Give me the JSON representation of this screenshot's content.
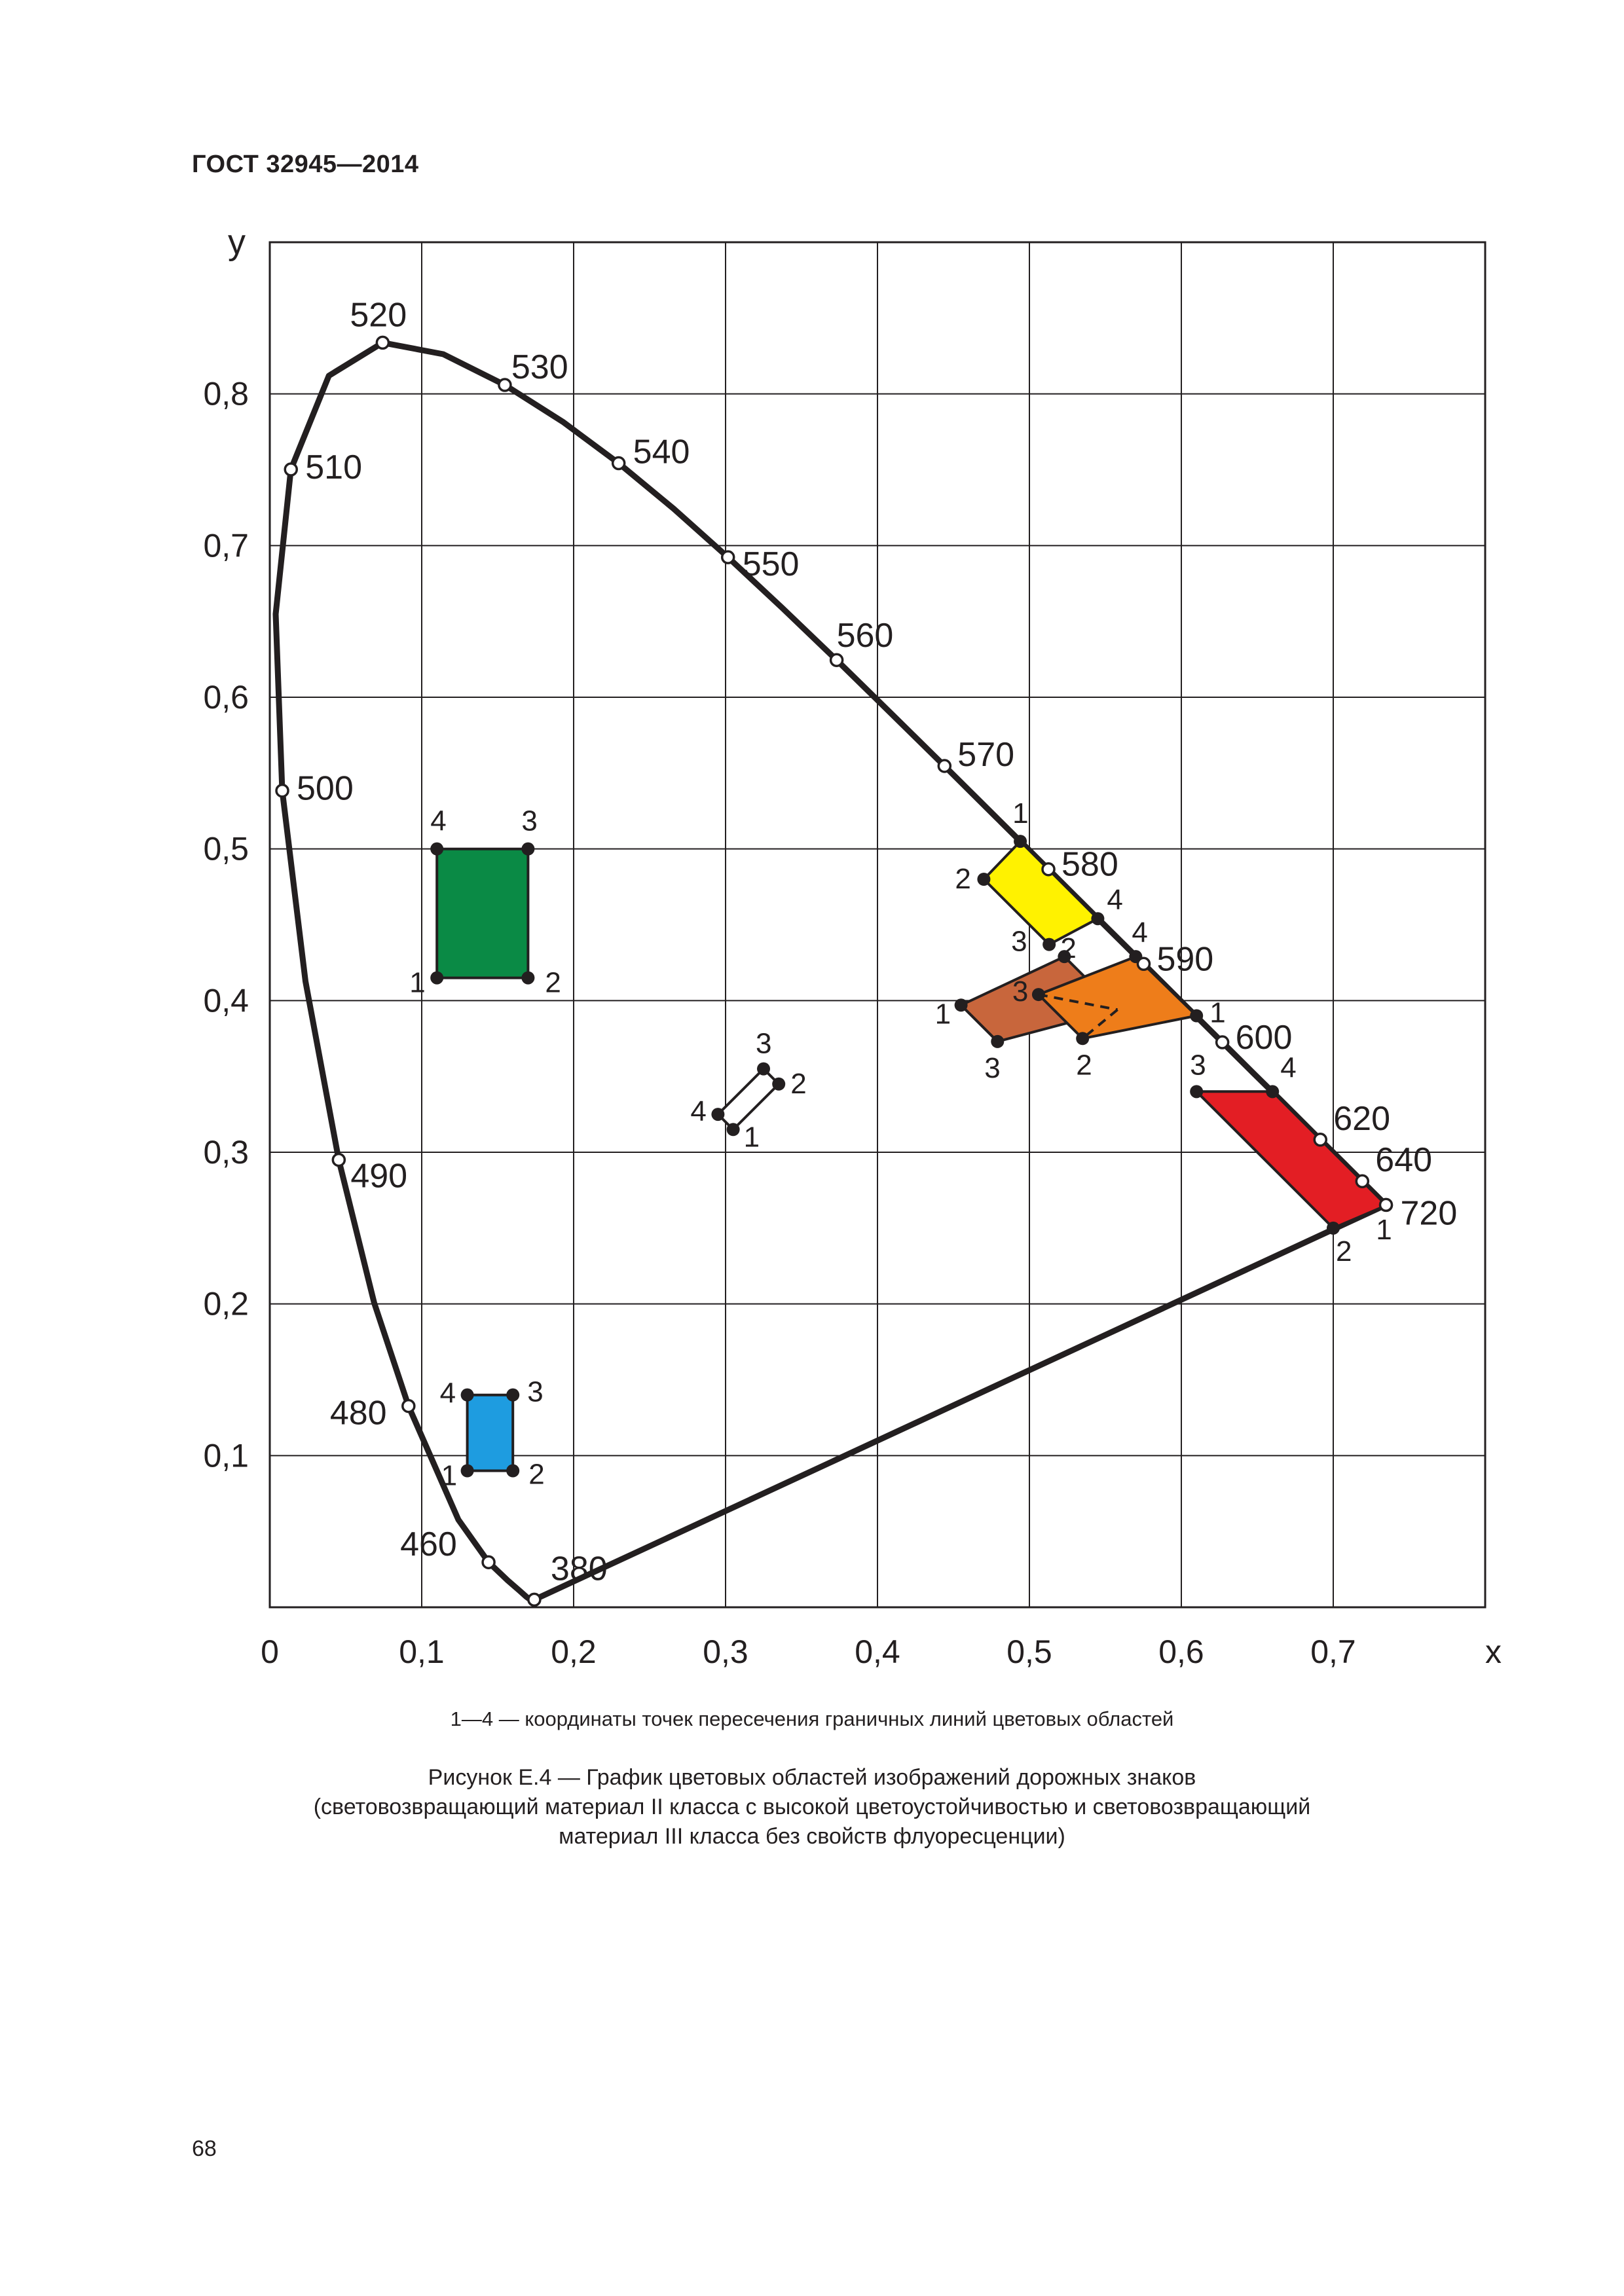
{
  "header": {
    "standard": "ГОСТ 32945—2014"
  },
  "chart_data": {
    "type": "scatter",
    "xlabel": "x",
    "ylabel": "y",
    "xlim": [
      0,
      0.8
    ],
    "ylim": [
      0,
      0.9
    ],
    "x_ticks": [
      {
        "value": 0,
        "label": "0"
      },
      {
        "value": 0.1,
        "label": "0,1"
      },
      {
        "value": 0.2,
        "label": "0,2"
      },
      {
        "value": 0.3,
        "label": "0,3"
      },
      {
        "value": 0.4,
        "label": "0,4"
      },
      {
        "value": 0.5,
        "label": "0,5"
      },
      {
        "value": 0.6,
        "label": "0,6"
      },
      {
        "value": 0.7,
        "label": "0,7"
      }
    ],
    "y_ticks": [
      {
        "value": 0.1,
        "label": "0,1"
      },
      {
        "value": 0.2,
        "label": "0,2"
      },
      {
        "value": 0.3,
        "label": "0,3"
      },
      {
        "value": 0.4,
        "label": "0,4"
      },
      {
        "value": 0.5,
        "label": "0,5"
      },
      {
        "value": 0.6,
        "label": "0,6"
      },
      {
        "value": 0.7,
        "label": "0,7"
      },
      {
        "value": 0.8,
        "label": "0,8"
      }
    ],
    "grid": true,
    "spectral_locus": [
      [
        0.1741,
        0.005
      ],
      [
        0.1738,
        0.0049
      ],
      [
        0.1736,
        0.005
      ],
      [
        0.1714,
        0.0051
      ],
      [
        0.1689,
        0.0069
      ],
      [
        0.1644,
        0.0109
      ],
      [
        0.1566,
        0.0177
      ],
      [
        0.144,
        0.0297
      ],
      [
        0.1241,
        0.0578
      ],
      [
        0.0913,
        0.1327
      ],
      [
        0.0687,
        0.2007
      ],
      [
        0.0454,
        0.295
      ],
      [
        0.0235,
        0.4127
      ],
      [
        0.0082,
        0.5384
      ],
      [
        0.0039,
        0.6548
      ],
      [
        0.0139,
        0.7502
      ],
      [
        0.0389,
        0.812
      ],
      [
        0.0743,
        0.8338
      ],
      [
        0.1142,
        0.8262
      ],
      [
        0.1547,
        0.8059
      ],
      [
        0.1929,
        0.7816
      ],
      [
        0.2296,
        0.7543
      ],
      [
        0.2658,
        0.7243
      ],
      [
        0.3016,
        0.6923
      ],
      [
        0.3373,
        0.6589
      ],
      [
        0.3731,
        0.6245
      ],
      [
        0.4087,
        0.5896
      ],
      [
        0.4441,
        0.5547
      ],
      [
        0.4788,
        0.5202
      ],
      [
        0.5125,
        0.4866
      ],
      [
        0.5448,
        0.4544
      ],
      [
        0.5752,
        0.4242
      ],
      [
        0.6029,
        0.3965
      ],
      [
        0.627,
        0.3725
      ],
      [
        0.6482,
        0.3514
      ],
      [
        0.6658,
        0.334
      ],
      [
        0.6915,
        0.3083
      ],
      [
        0.7079,
        0.292
      ],
      [
        0.7347,
        0.2653
      ]
    ],
    "wavelength_labels": [
      {
        "label": "380",
        "x": 0.1741,
        "y": 0.005
      },
      {
        "label": "460",
        "x": 0.144,
        "y": 0.0297
      },
      {
        "label": "480",
        "x": 0.0913,
        "y": 0.1327
      },
      {
        "label": "490",
        "x": 0.0454,
        "y": 0.295
      },
      {
        "label": "500",
        "x": 0.0082,
        "y": 0.5384
      },
      {
        "label": "510",
        "x": 0.0139,
        "y": 0.7502
      },
      {
        "label": "520",
        "x": 0.0743,
        "y": 0.8338
      },
      {
        "label": "530",
        "x": 0.1547,
        "y": 0.8059
      },
      {
        "label": "540",
        "x": 0.2296,
        "y": 0.7543
      },
      {
        "label": "550",
        "x": 0.3016,
        "y": 0.6923
      },
      {
        "label": "560",
        "x": 0.3731,
        "y": 0.6245
      },
      {
        "label": "570",
        "x": 0.4441,
        "y": 0.5547
      },
      {
        "label": "580",
        "x": 0.5125,
        "y": 0.4866
      },
      {
        "label": "590",
        "x": 0.5752,
        "y": 0.4242
      },
      {
        "label": "600",
        "x": 0.627,
        "y": 0.3725
      },
      {
        "label": "620",
        "x": 0.6915,
        "y": 0.3083
      },
      {
        "label": "640",
        "x": 0.7191,
        "y": 0.2809
      },
      {
        "label": "720",
        "x": 0.7347,
        "y": 0.2653
      }
    ],
    "regions": [
      {
        "color": "#0a8a45",
        "points": [
          {
            "label": "1",
            "x": 0.11,
            "y": 0.415
          },
          {
            "label": "2",
            "x": 0.17,
            "y": 0.415
          },
          {
            "label": "3",
            "x": 0.17,
            "y": 0.5
          },
          {
            "label": "4",
            "x": 0.11,
            "y": 0.5
          }
        ]
      },
      {
        "color": "#1e9ce0",
        "points": [
          {
            "label": "1",
            "x": 0.13,
            "y": 0.09
          },
          {
            "label": "2",
            "x": 0.16,
            "y": 0.09
          },
          {
            "label": "3",
            "x": 0.16,
            "y": 0.14
          },
          {
            "label": "4",
            "x": 0.13,
            "y": 0.14
          }
        ]
      },
      {
        "color": "#ffffff",
        "points": [
          {
            "label": "1",
            "x": 0.305,
            "y": 0.315
          },
          {
            "label": "2",
            "x": 0.335,
            "y": 0.345
          },
          {
            "label": "3",
            "x": 0.325,
            "y": 0.355
          },
          {
            "label": "4",
            "x": 0.295,
            "y": 0.325
          }
        ]
      },
      {
        "color": "#fff200",
        "points": [
          {
            "label": "1",
            "x": 0.494,
            "y": 0.505
          },
          {
            "label": "2",
            "x": 0.47,
            "y": 0.48
          },
          {
            "label": "3",
            "x": 0.513,
            "y": 0.437
          },
          {
            "label": "4",
            "x": 0.545,
            "y": 0.454
          }
        ]
      },
      {
        "color": "#c8663c",
        "points": [
          {
            "label": "1",
            "x": 0.455,
            "y": 0.397
          },
          {
            "label": "2",
            "x": 0.523,
            "y": 0.429
          },
          {
            "label": "4",
            "x": 0.558,
            "y": 0.394
          },
          {
            "label": "3",
            "x": 0.479,
            "y": 0.373
          }
        ]
      },
      {
        "color": "#ee7d1a",
        "points": [
          {
            "label": "1",
            "x": 0.61,
            "y": 0.39
          },
          {
            "label": "4",
            "x": 0.57,
            "y": 0.429
          },
          {
            "label": "3",
            "x": 0.506,
            "y": 0.404
          },
          {
            "label": "2",
            "x": 0.535,
            "y": 0.375
          }
        ]
      },
      {
        "color": "#e31e24",
        "points": [
          {
            "label": "1",
            "x": 0.735,
            "y": 0.265
          },
          {
            "label": "2",
            "x": 0.7,
            "y": 0.25
          },
          {
            "label": "3",
            "x": 0.61,
            "y": 0.34
          },
          {
            "label": "4",
            "x": 0.66,
            "y": 0.34
          }
        ]
      }
    ]
  },
  "legend_note": "1—4 — координаты точек пересечения граничных линий цветовых областей",
  "caption": {
    "line1": "Рисунок Е.4 — График цветовых областей изображений дорожных знаков",
    "line2": "(световозвращающий материал II класса с высокой цветоустойчивостью и световозвращающий",
    "line3": "материал III класса без свойств флуоресценции)"
  },
  "page_number": "68"
}
